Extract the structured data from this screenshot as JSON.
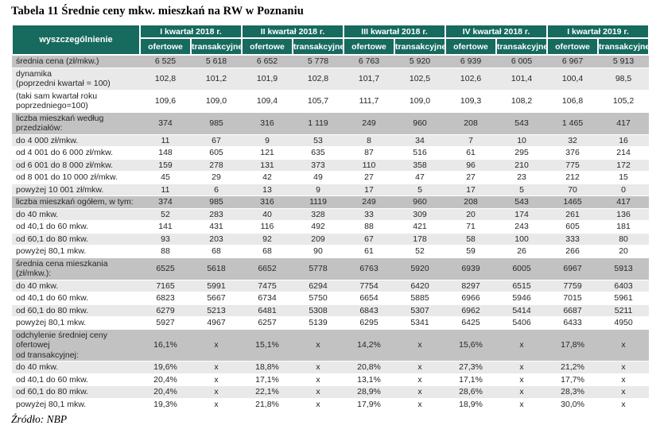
{
  "title": "Tabela 11 Średnie ceny mkw. mieszkań na RW w Poznaniu",
  "source": "Źródło: NBP",
  "table": {
    "corner_header": "wyszczególnienie",
    "quarters": [
      "I  kwartał 2018 r.",
      "II  kwartał 2018 r.",
      "III  kwartał 2018 r.",
      "IV  kwartał 2018 r.",
      "I  kwartał 2019 r."
    ],
    "subheaders": [
      "ofertowe",
      "transakcyjne"
    ],
    "rows": [
      {
        "bg": "section",
        "label_lines": [
          "średnia cena (zł/mkw.)"
        ],
        "values": [
          "6 525",
          "5 618",
          "6 652",
          "5 778",
          "6 763",
          "5 920",
          "6 939",
          "6 005",
          "6 967",
          "5 913"
        ]
      },
      {
        "bg": "light",
        "label_lines": [
          "dynamika",
          "(poprzedni kwartał = 100)"
        ],
        "values": [
          "102,8",
          "101,2",
          "101,9",
          "102,8",
          "101,7",
          "102,5",
          "102,6",
          "101,4",
          "100,4",
          "98,5"
        ]
      },
      {
        "bg": "white",
        "label_lines": [
          "(taki sam kwartał roku",
          "poprzedniego=100)"
        ],
        "values": [
          "109,6",
          "109,0",
          "109,4",
          "105,7",
          "111,7",
          "109,0",
          "109,3",
          "108,2",
          "106,8",
          "105,2"
        ]
      },
      {
        "bg": "section",
        "label_lines": [
          "liczba mieszkań według",
          "przedziałów:"
        ],
        "values": [
          "374",
          "985",
          "316",
          "1 119",
          "249",
          "960",
          "208",
          "543",
          "1 465",
          "417"
        ]
      },
      {
        "bg": "light",
        "label_lines": [
          "do 4 000 zł/mkw."
        ],
        "values": [
          "11",
          "67",
          "9",
          "53",
          "8",
          "34",
          "7",
          "10",
          "32",
          "16"
        ]
      },
      {
        "bg": "white",
        "label_lines": [
          "od 4 001 do 6 000 zł/mkw."
        ],
        "values": [
          "148",
          "605",
          "121",
          "635",
          "87",
          "516",
          "61",
          "295",
          "376",
          "214"
        ]
      },
      {
        "bg": "light",
        "label_lines": [
          "od 6 001 do 8 000 zł/mkw."
        ],
        "values": [
          "159",
          "278",
          "131",
          "373",
          "110",
          "358",
          "96",
          "210",
          "775",
          "172"
        ]
      },
      {
        "bg": "white",
        "label_lines": [
          "od 8 001 do 10 000 zł/mkw."
        ],
        "values": [
          "45",
          "29",
          "42",
          "49",
          "27",
          "47",
          "27",
          "23",
          "212",
          "15"
        ]
      },
      {
        "bg": "light",
        "label_lines": [
          "powyżej 10 001 zł/mkw."
        ],
        "values": [
          "11",
          "6",
          "13",
          "9",
          "17",
          "5",
          "17",
          "5",
          "70",
          "0"
        ]
      },
      {
        "bg": "section",
        "label_lines": [
          "liczba mieszkań ogółem, w tym:"
        ],
        "values": [
          "374",
          "985",
          "316",
          "1119",
          "249",
          "960",
          "208",
          "543",
          "1465",
          "417"
        ]
      },
      {
        "bg": "light",
        "label_lines": [
          "do 40 mkw."
        ],
        "values": [
          "52",
          "283",
          "40",
          "328",
          "33",
          "309",
          "20",
          "174",
          "261",
          "136"
        ]
      },
      {
        "bg": "white",
        "label_lines": [
          "od 40,1 do 60 mkw."
        ],
        "values": [
          "141",
          "431",
          "116",
          "492",
          "88",
          "421",
          "71",
          "243",
          "605",
          "181"
        ]
      },
      {
        "bg": "light",
        "label_lines": [
          "od 60,1 do 80 mkw."
        ],
        "values": [
          "93",
          "203",
          "92",
          "209",
          "67",
          "178",
          "58",
          "100",
          "333",
          "80"
        ]
      },
      {
        "bg": "white",
        "label_lines": [
          "powyżej 80,1 mkw."
        ],
        "values": [
          "88",
          "68",
          "68",
          "90",
          "61",
          "52",
          "59",
          "26",
          "266",
          "20"
        ]
      },
      {
        "bg": "section",
        "label_lines": [
          "średnia cena mieszkania (zł/mkw.):"
        ],
        "values": [
          "6525",
          "5618",
          "6652",
          "5778",
          "6763",
          "5920",
          "6939",
          "6005",
          "6967",
          "5913"
        ]
      },
      {
        "bg": "light",
        "label_lines": [
          "do 40 mkw."
        ],
        "values": [
          "7165",
          "5991",
          "7475",
          "6294",
          "7754",
          "6420",
          "8297",
          "6515",
          "7759",
          "6403"
        ]
      },
      {
        "bg": "white",
        "label_lines": [
          "od 40,1 do 60 mkw."
        ],
        "values": [
          "6823",
          "5667",
          "6734",
          "5750",
          "6654",
          "5885",
          "6966",
          "5946",
          "7015",
          "5961"
        ]
      },
      {
        "bg": "light",
        "label_lines": [
          "od 60,1 do 80 mkw."
        ],
        "values": [
          "6279",
          "5213",
          "6481",
          "5308",
          "6843",
          "5307",
          "6962",
          "5414",
          "6687",
          "5211"
        ]
      },
      {
        "bg": "white",
        "label_lines": [
          "powyżej 80,1 mkw."
        ],
        "values": [
          "5927",
          "4967",
          "6257",
          "5139",
          "6295",
          "5341",
          "6425",
          "5406",
          "6433",
          "4950"
        ]
      },
      {
        "bg": "section",
        "label_lines": [
          "odchylenie średniej ceny ofertowej",
          "od transakcyjnej:"
        ],
        "values": [
          "16,1%",
          "x",
          "15,1%",
          "x",
          "14,2%",
          "x",
          "15,6%",
          "x",
          "17,8%",
          "x"
        ]
      },
      {
        "bg": "light",
        "label_lines": [
          "do 40 mkw."
        ],
        "values": [
          "19,6%",
          "x",
          "18,8%",
          "x",
          "20,8%",
          "x",
          "27,3%",
          "x",
          "21,2%",
          "x"
        ]
      },
      {
        "bg": "white",
        "label_lines": [
          "od 40,1 do 60 mkw."
        ],
        "values": [
          "20,4%",
          "x",
          "17,1%",
          "x",
          "13,1%",
          "x",
          "17,1%",
          "x",
          "17,7%",
          "x"
        ]
      },
      {
        "bg": "light",
        "label_lines": [
          "od 60,1 do 80 mkw."
        ],
        "values": [
          "20,4%",
          "x",
          "22,1%",
          "x",
          "28,9%",
          "x",
          "28,6%",
          "x",
          "28,3%",
          "x"
        ]
      },
      {
        "bg": "white",
        "label_lines": [
          "powyżej 80,1 mkw."
        ],
        "values": [
          "19,3%",
          "x",
          "21,8%",
          "x",
          "17,9%",
          "x",
          "18,9%",
          "x",
          "30,0%",
          "x"
        ]
      }
    ],
    "colors": {
      "header_green": "#166A5E",
      "section_row_gray": "#C2C2C2",
      "striped_row_gray": "#E9E9E9"
    }
  }
}
